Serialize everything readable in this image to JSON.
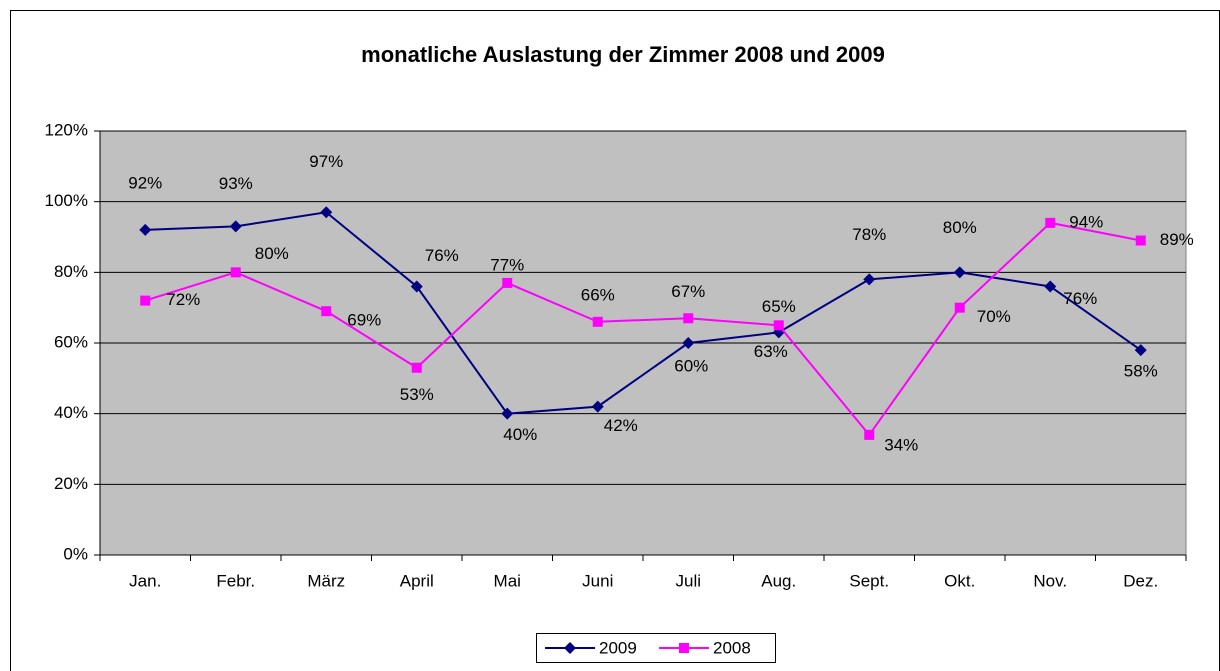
{
  "chart_data": {
    "type": "line",
    "title": "monatliche Auslastung der Zimmer 2008 und 2009",
    "categories": [
      "Jan.",
      "Febr.",
      "März",
      "April",
      "Mai",
      "Juni",
      "Juli",
      "Aug.",
      "Sept.",
      "Okt.",
      "Nov.",
      "Dez."
    ],
    "series": [
      {
        "name": "2009",
        "color": "#000080",
        "marker": "diamond",
        "values": [
          92,
          93,
          97,
          76,
          40,
          42,
          60,
          63,
          78,
          80,
          76,
          58
        ],
        "value_labels": [
          "92%",
          "93%",
          "97%",
          "76%",
          "40%",
          "42%",
          "60%",
          "63%",
          "78%",
          "80%",
          "76%",
          "58%"
        ]
      },
      {
        "name": "2008",
        "color": "#ff00ff",
        "marker": "square",
        "values": [
          72,
          80,
          69,
          53,
          77,
          66,
          67,
          65,
          34,
          70,
          94,
          89
        ],
        "value_labels": [
          "72%",
          "80%",
          "69%",
          "53%",
          "77%",
          "66%",
          "67%",
          "65%",
          "34%",
          "70%",
          "94%",
          "89%"
        ]
      }
    ],
    "ylim": [
      0,
      120
    ],
    "yticks": [
      {
        "value": 0,
        "label": "0%"
      },
      {
        "value": 20,
        "label": "20%"
      },
      {
        "value": 40,
        "label": "40%"
      },
      {
        "value": 60,
        "label": "60%"
      },
      {
        "value": 80,
        "label": "80%"
      },
      {
        "value": 100,
        "label": "100%"
      },
      {
        "value": 120,
        "label": "120%"
      }
    ],
    "grid": true,
    "legend": "bottom",
    "plot_background": "#c0c0c0"
  }
}
